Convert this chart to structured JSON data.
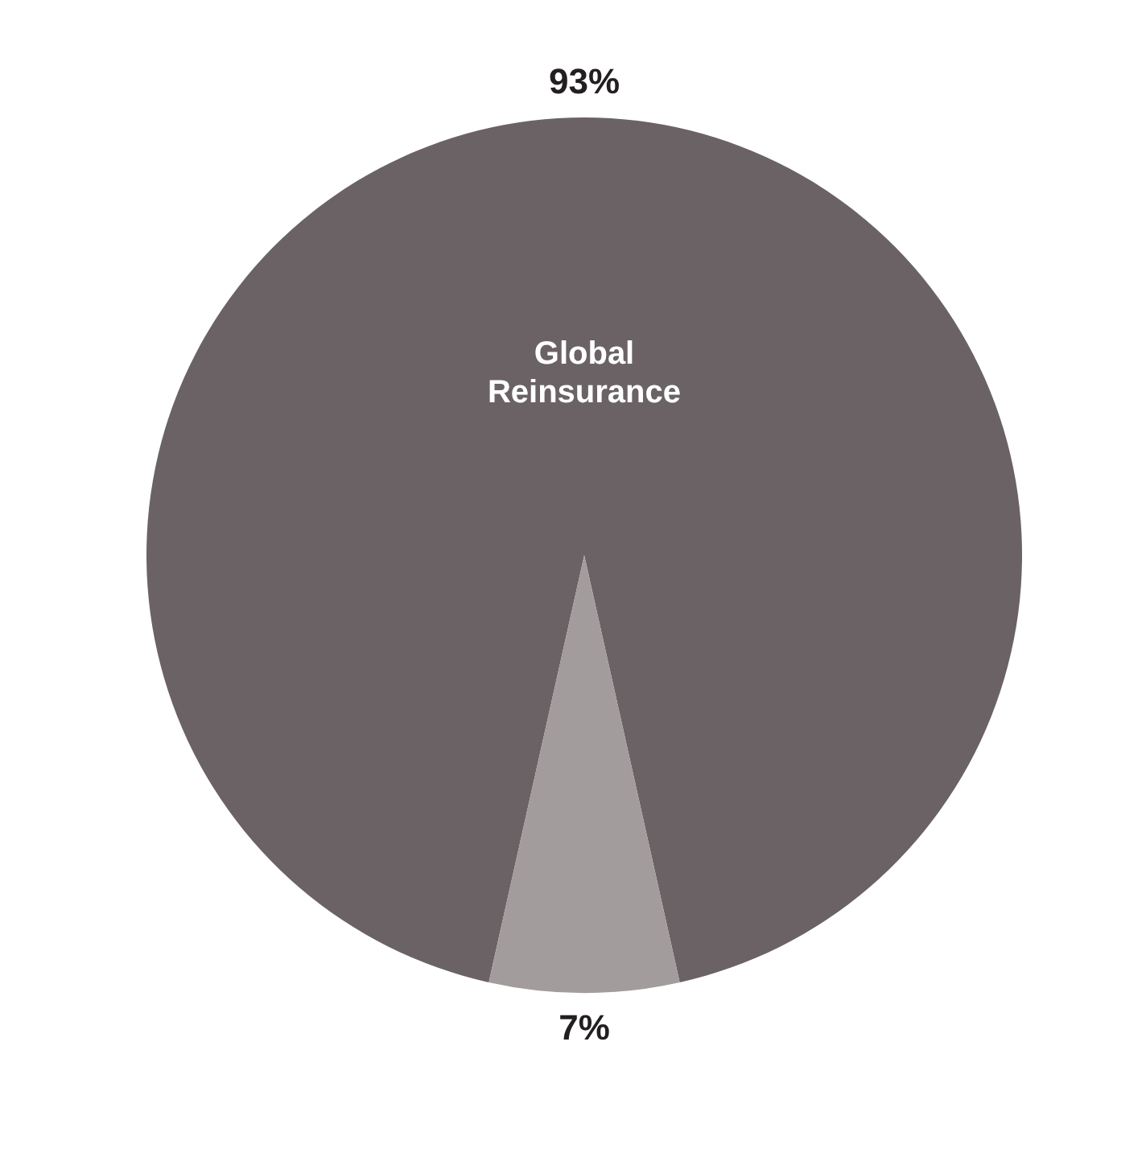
{
  "chart_data": {
    "type": "pie",
    "categories": [
      "Global Reinsurance",
      null
    ],
    "values": [
      93,
      7
    ],
    "colors": [
      "#6a6264",
      "#a39c9d"
    ],
    "value_labels": [
      "93%",
      "7%"
    ]
  }
}
